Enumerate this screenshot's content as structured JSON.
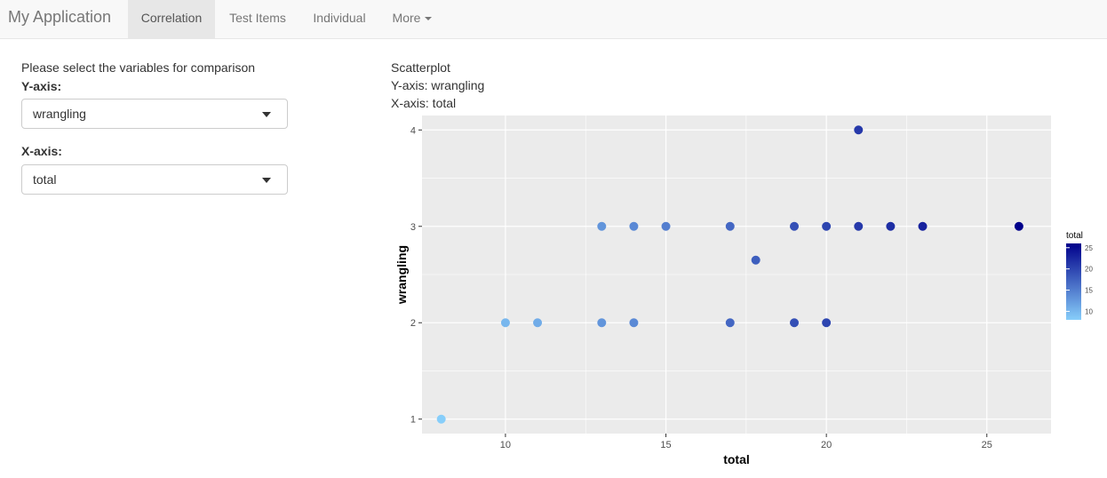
{
  "navbar": {
    "brand": "My Application",
    "tabs": [
      {
        "label": "Correlation",
        "active": true
      },
      {
        "label": "Test Items",
        "active": false
      },
      {
        "label": "Individual",
        "active": false
      },
      {
        "label": "More",
        "active": false
      }
    ]
  },
  "sidebar": {
    "title": "Please select the variables for comparison",
    "y_label": "Y-axis:",
    "y_value": "wrangling",
    "x_label": "X-axis:",
    "x_value": "total"
  },
  "plot": {
    "heading": "Scatterplot",
    "y_caption": "Y-axis: wrangling",
    "x_caption": "X-axis: total"
  },
  "chart_data": {
    "type": "scatter",
    "xlabel": "total",
    "ylabel": "wrangling",
    "xlim": [
      7.4,
      27
    ],
    "ylim": [
      0.85,
      4.15
    ],
    "x_ticks": [
      10,
      15,
      20,
      25
    ],
    "y_ticks": [
      1,
      2,
      3,
      4
    ],
    "grid": true,
    "legend_title": "total",
    "legend_ticks": [
      10,
      15,
      20,
      25
    ],
    "legend_position": "right",
    "color_low": "#87cefa",
    "color_high": "#00008b",
    "color_range": [
      8,
      26
    ],
    "points": [
      {
        "x": 8,
        "y": 1
      },
      {
        "x": 10,
        "y": 2
      },
      {
        "x": 11,
        "y": 2
      },
      {
        "x": 13,
        "y": 2
      },
      {
        "x": 14,
        "y": 2
      },
      {
        "x": 17,
        "y": 2
      },
      {
        "x": 19,
        "y": 2
      },
      {
        "x": 20,
        "y": 2
      },
      {
        "x": 13,
        "y": 3
      },
      {
        "x": 14,
        "y": 3
      },
      {
        "x": 15,
        "y": 3
      },
      {
        "x": 17,
        "y": 3
      },
      {
        "x": 19,
        "y": 3
      },
      {
        "x": 20,
        "y": 3
      },
      {
        "x": 21,
        "y": 3
      },
      {
        "x": 22,
        "y": 3
      },
      {
        "x": 23,
        "y": 3
      },
      {
        "x": 26,
        "y": 3
      },
      {
        "x": 17.8,
        "y": 2.65
      },
      {
        "x": 21,
        "y": 4
      }
    ]
  }
}
